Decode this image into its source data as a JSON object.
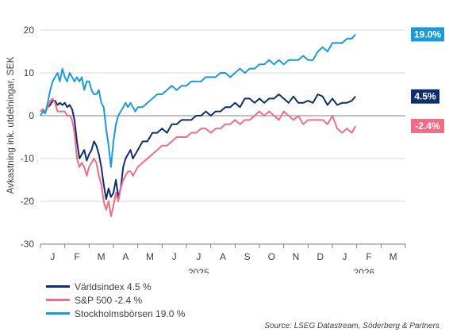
{
  "chart_data": {
    "type": "line",
    "ylabel": "Avkastning ink. utdelningar, SEK",
    "ylim": [
      -30,
      20
    ],
    "yticks": [
      "20",
      "10",
      "0",
      "-10",
      "-20",
      "-30"
    ],
    "ytick_values": [
      20,
      10,
      0,
      -10,
      -20,
      -30
    ],
    "x_ticks": [
      "J",
      "F",
      "M",
      "A",
      "M",
      "J",
      "J",
      "A",
      "S",
      "O",
      "N",
      "D",
      "J",
      "F",
      "M"
    ],
    "years": [
      "2025",
      "2026"
    ],
    "grid": "horizontal",
    "legend_position": "bottom-left",
    "series": [
      {
        "name": "Världsindex 4.5 %",
        "end_label": "4.5%",
        "color": "#0d2f6e",
        "label_color": "#0d2f6e",
        "x": [
          0,
          0.1,
          0.2,
          0.3,
          0.4,
          0.5,
          0.6,
          0.7,
          0.8,
          0.9,
          1.0,
          1.1,
          1.2,
          1.3,
          1.4,
          1.5,
          1.6,
          1.7,
          1.8,
          1.9,
          2.0,
          2.1,
          2.2,
          2.3,
          2.4,
          2.5,
          2.6,
          2.7,
          2.8,
          2.9,
          3.0,
          3.1,
          3.2,
          3.3,
          3.4,
          3.5,
          3.6,
          3.7,
          3.8,
          3.9,
          4.0,
          4.2,
          4.4,
          4.6,
          4.8,
          5.0,
          5.2,
          5.4,
          5.6,
          5.8,
          6.0,
          6.2,
          6.4,
          6.6,
          6.8,
          7.0,
          7.2,
          7.4,
          7.6,
          7.8,
          8.0,
          8.2,
          8.4,
          8.6,
          8.8,
          9.0,
          9.2,
          9.4,
          9.6,
          9.8,
          10.0,
          10.2,
          10.4,
          10.6,
          10.8,
          11.0,
          11.2,
          11.4,
          11.6,
          11.8,
          12.0,
          12.2,
          12.4,
          12.6,
          12.8,
          12.95
        ],
        "y": [
          1,
          1.5,
          1,
          2,
          2.5,
          3.5,
          3.5,
          2.5,
          3,
          2.5,
          3,
          2,
          2.5,
          1.5,
          -1,
          -6,
          -10,
          -9,
          -8,
          -10.5,
          -9,
          -8,
          -6,
          -7,
          -9,
          -12,
          -16,
          -19.5,
          -17,
          -19,
          -18,
          -15,
          -19,
          -17,
          -12,
          -10,
          -9,
          -8,
          -10,
          -9,
          -8,
          -6,
          -6,
          -4,
          -4,
          -3,
          -4,
          -2,
          -2,
          -1,
          -1,
          -1,
          0,
          0,
          1,
          0,
          1,
          1,
          2,
          2,
          3,
          2,
          4,
          4,
          3,
          4,
          3,
          4,
          4,
          5,
          4,
          3,
          4.5,
          3,
          3,
          3.5,
          3,
          5,
          4.5,
          2.5,
          4,
          2.5,
          3,
          3,
          3.5,
          4.5
        ]
      },
      {
        "name": "S&P 500 -2.4 %",
        "end_label": "-2.4%",
        "color": "#f36c86",
        "label_color": "#f36c86",
        "x": [
          0,
          0.1,
          0.2,
          0.3,
          0.4,
          0.5,
          0.6,
          0.7,
          0.8,
          0.9,
          1.0,
          1.1,
          1.2,
          1.3,
          1.4,
          1.5,
          1.6,
          1.7,
          1.8,
          1.9,
          2.0,
          2.1,
          2.2,
          2.3,
          2.4,
          2.5,
          2.6,
          2.7,
          2.8,
          2.9,
          3.0,
          3.1,
          3.2,
          3.3,
          3.4,
          3.5,
          3.6,
          3.7,
          3.8,
          3.9,
          4.0,
          4.2,
          4.4,
          4.6,
          4.8,
          5.0,
          5.2,
          5.4,
          5.6,
          5.8,
          6.0,
          6.2,
          6.4,
          6.6,
          6.8,
          7.0,
          7.2,
          7.4,
          7.6,
          7.8,
          8.0,
          8.2,
          8.4,
          8.6,
          8.8,
          9.0,
          9.2,
          9.4,
          9.6,
          9.8,
          10.0,
          10.2,
          10.4,
          10.6,
          10.8,
          11.0,
          11.2,
          11.4,
          11.6,
          11.8,
          12.0,
          12.2,
          12.4,
          12.6,
          12.8,
          12.95
        ],
        "y": [
          1,
          1.5,
          1,
          2,
          3.5,
          4,
          3,
          1,
          1,
          1,
          1,
          0,
          0,
          -1,
          -4,
          -10,
          -12,
          -11,
          -12,
          -14,
          -12,
          -11,
          -10,
          -11,
          -14,
          -16,
          -20,
          -22,
          -20,
          -23.5,
          -21,
          -18,
          -20,
          -17,
          -15,
          -14,
          -13,
          -13,
          -14,
          -13,
          -12,
          -11,
          -10,
          -9,
          -8,
          -7,
          -7,
          -6,
          -5,
          -5,
          -5,
          -4,
          -4,
          -3,
          -3,
          -4,
          -3,
          -3,
          -2,
          -2,
          -1,
          -2,
          -1,
          -1,
          0,
          1,
          0,
          1,
          0,
          -1,
          1,
          0,
          -1,
          0,
          -2,
          -1,
          -1,
          -1,
          -1,
          -2,
          0,
          -3,
          -4,
          -3,
          -4,
          -2.4
        ]
      },
      {
        "name": "Stockholmsbörsen 19.0 %",
        "end_label": "19.0%",
        "color": "#1a9bd7",
        "label_color": "#1a9bd7",
        "x": [
          0,
          0.1,
          0.2,
          0.3,
          0.4,
          0.5,
          0.6,
          0.7,
          0.8,
          0.9,
          1.0,
          1.1,
          1.2,
          1.3,
          1.4,
          1.5,
          1.6,
          1.7,
          1.8,
          1.9,
          2.0,
          2.1,
          2.2,
          2.3,
          2.4,
          2.5,
          2.6,
          2.7,
          2.8,
          2.9,
          3.0,
          3.1,
          3.2,
          3.3,
          3.4,
          3.5,
          3.6,
          3.7,
          3.8,
          3.9,
          4.0,
          4.2,
          4.4,
          4.6,
          4.8,
          5.0,
          5.2,
          5.4,
          5.6,
          5.8,
          6.0,
          6.2,
          6.4,
          6.6,
          6.8,
          7.0,
          7.2,
          7.4,
          7.6,
          7.8,
          8.0,
          8.2,
          8.4,
          8.6,
          8.8,
          9.0,
          9.2,
          9.4,
          9.6,
          9.8,
          10.0,
          10.2,
          10.4,
          10.6,
          10.8,
          11.0,
          11.2,
          11.4,
          11.6,
          11.8,
          12.0,
          12.2,
          12.4,
          12.6,
          12.8,
          12.95
        ],
        "y": [
          0,
          1,
          0.5,
          3,
          6,
          8,
          9,
          10,
          8,
          11,
          9,
          8,
          10,
          9,
          8,
          9,
          8,
          9,
          6,
          8,
          8,
          6,
          5,
          5,
          6,
          3,
          2,
          -3,
          -7,
          -12,
          -6,
          -2,
          0,
          1,
          2,
          3,
          2,
          3,
          2,
          1,
          2,
          2,
          3,
          4,
          5,
          5,
          6,
          7,
          6,
          7,
          7,
          8,
          8,
          8,
          9,
          9,
          9,
          10,
          10,
          9,
          10,
          11,
          10,
          11,
          11,
          12,
          12,
          13,
          12,
          13,
          12,
          13,
          13,
          13,
          14,
          13,
          13,
          15,
          16,
          15,
          17,
          17,
          17,
          18,
          18,
          19
        ]
      }
    ]
  },
  "legend": [
    {
      "label": "Världsindex 4.5 %",
      "color": "#0d2f6e"
    },
    {
      "label": "S&P 500 -2.4 %",
      "color": "#f36c86"
    },
    {
      "label": "Stockholmsbörsen 19.0 %",
      "color": "#1a9bd7"
    }
  ],
  "source": "Source: LSEG Datastream, Söderberg & Partners"
}
